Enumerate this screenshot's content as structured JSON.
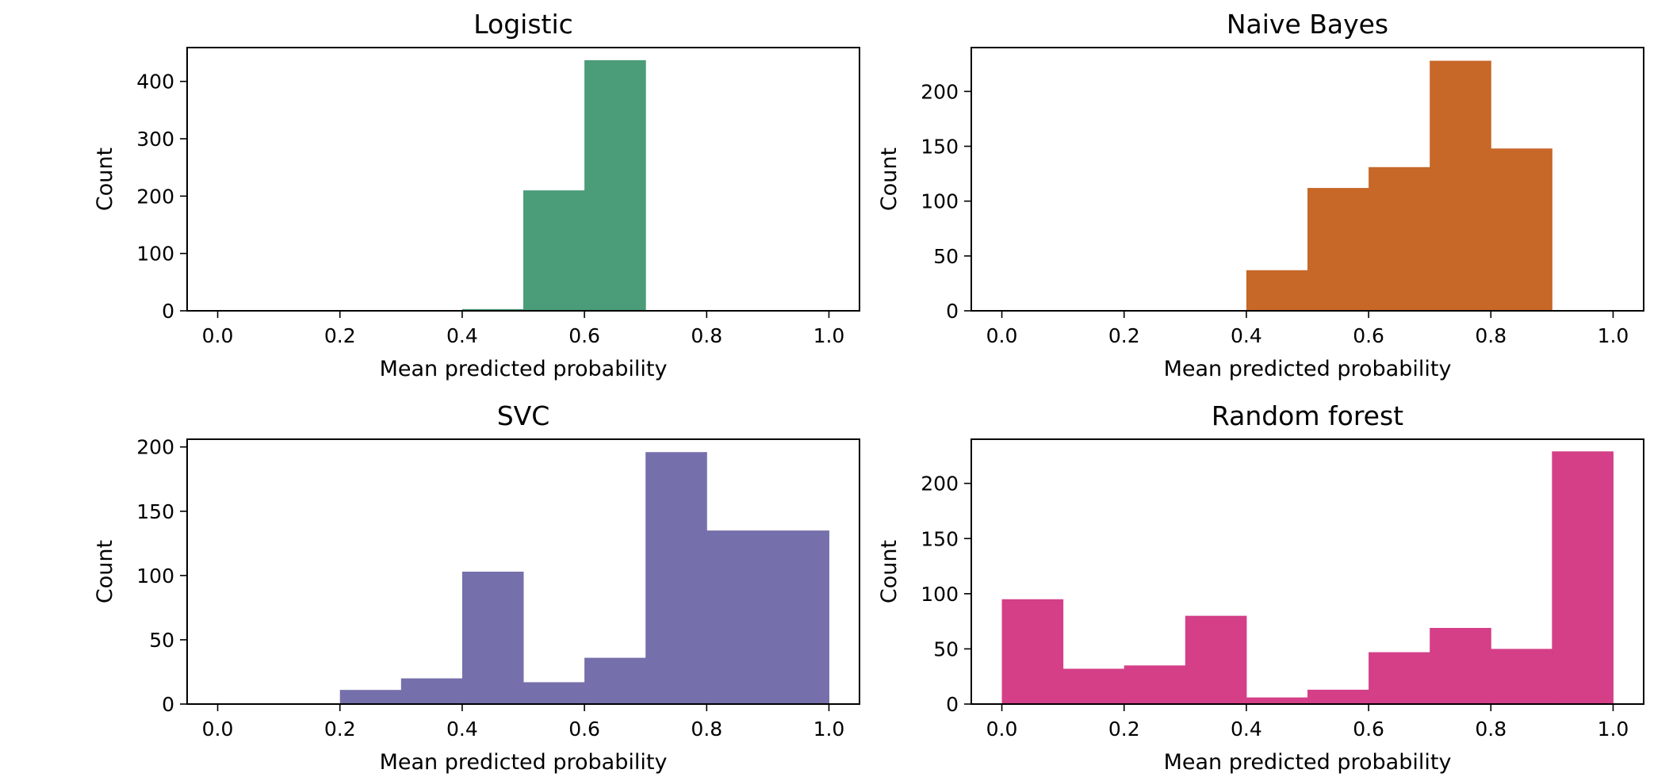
{
  "chart_data": [
    {
      "type": "bar",
      "title": "Logistic",
      "xlabel": "Mean predicted probability",
      "ylabel": "Count",
      "color": "#4b9c78",
      "bin_edges": [
        0.0,
        0.1,
        0.2,
        0.3,
        0.4,
        0.5,
        0.6,
        0.7,
        0.8,
        0.9,
        1.0
      ],
      "values": [
        0,
        0,
        0,
        0,
        3,
        210,
        437,
        0,
        0,
        0
      ],
      "xlim": [
        -0.05,
        1.05
      ],
      "ylim": [
        0,
        459
      ],
      "xticks": [
        "0.0",
        "0.2",
        "0.4",
        "0.6",
        "0.8",
        "1.0"
      ],
      "yticks": [
        "0",
        "100",
        "200",
        "300",
        "400"
      ],
      "grid": false
    },
    {
      "type": "bar",
      "title": "Naive Bayes",
      "xlabel": "Mean predicted probability",
      "ylabel": "Count",
      "color": "#c76728",
      "bin_edges": [
        0.0,
        0.1,
        0.2,
        0.3,
        0.4,
        0.5,
        0.6,
        0.7,
        0.8,
        0.9,
        1.0
      ],
      "values": [
        0,
        0,
        0,
        0,
        37,
        112,
        131,
        228,
        148,
        0
      ],
      "xlim": [
        -0.05,
        1.05
      ],
      "ylim": [
        0,
        240
      ],
      "xticks": [
        "0.0",
        "0.2",
        "0.4",
        "0.6",
        "0.8",
        "1.0"
      ],
      "yticks": [
        "0",
        "50",
        "100",
        "150",
        "200"
      ],
      "grid": false
    },
    {
      "type": "bar",
      "title": "SVC",
      "xlabel": "Mean predicted probability",
      "ylabel": "Count",
      "color": "#7570ab",
      "bin_edges": [
        0.0,
        0.1,
        0.2,
        0.3,
        0.4,
        0.5,
        0.6,
        0.7,
        0.8,
        0.9,
        1.0
      ],
      "values": [
        0,
        0,
        11,
        20,
        103,
        17,
        36,
        196,
        135,
        135
      ],
      "xlim": [
        -0.05,
        1.05
      ],
      "ylim": [
        0,
        206
      ],
      "xticks": [
        "0.0",
        "0.2",
        "0.4",
        "0.6",
        "0.8",
        "1.0"
      ],
      "yticks": [
        "0",
        "50",
        "100",
        "150",
        "200"
      ],
      "grid": false
    },
    {
      "type": "bar",
      "title": "Random forest",
      "xlabel": "Mean predicted probability",
      "ylabel": "Count",
      "color": "#d43f88",
      "bin_edges": [
        0.0,
        0.1,
        0.2,
        0.3,
        0.4,
        0.5,
        0.6,
        0.7,
        0.8,
        0.9,
        1.0
      ],
      "values": [
        95,
        32,
        35,
        80,
        6,
        13,
        47,
        69,
        50,
        229
      ],
      "xlim": [
        -0.05,
        1.05
      ],
      "ylim": [
        0,
        240
      ],
      "xticks": [
        "0.0",
        "0.2",
        "0.4",
        "0.6",
        "0.8",
        "1.0"
      ],
      "yticks": [
        "0",
        "50",
        "100",
        "150",
        "200"
      ],
      "grid": false
    }
  ]
}
